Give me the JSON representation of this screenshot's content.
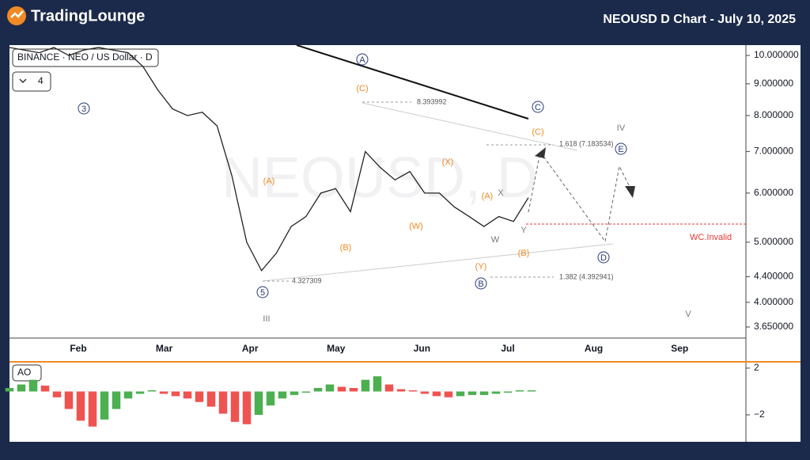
{
  "header": {
    "logo": "TradingLounge",
    "title": "NEOUSD D Chart - July 10, 2025"
  },
  "symbol": "BINANCE · NEO / US Dollar · D",
  "interval_button": "4",
  "watermark": "NEOUSD, D",
  "price_axis": {
    "log": true,
    "ylim": [
      3.503,
      10.39
    ],
    "ticks": [
      {
        "value": 10,
        "label": "10.000000"
      },
      {
        "value": 9,
        "label": "9.000000"
      },
      {
        "value": 8,
        "label": "8.000000"
      },
      {
        "value": 7,
        "label": "7.000000"
      },
      {
        "value": 6,
        "label": "6.000000"
      },
      {
        "value": 5,
        "label": "5.000000"
      },
      {
        "value": 4.4,
        "label": "4.400000"
      },
      {
        "value": 4,
        "label": "4.000000"
      },
      {
        "value": 3.65,
        "label": "3.650000"
      }
    ]
  },
  "time_axis": [
    "Feb",
    "Mar",
    "Apr",
    "May",
    "Jun",
    "Jul",
    "Aug",
    "Sep"
  ],
  "closes": [
    10.3,
    10.2,
    10.1,
    10.3,
    10.0,
    10.2,
    10.3,
    10.2,
    10.1,
    9.6,
    8.8,
    8.2,
    8.0,
    8.1,
    7.7,
    6.4,
    5.0,
    4.5,
    4.8,
    5.3,
    5.5,
    6.0,
    6.1,
    5.6,
    7.0,
    6.6,
    6.3,
    6.5,
    6.0,
    6.0,
    5.7,
    5.5,
    5.3,
    5.5,
    5.4,
    5.9
  ],
  "wave_labels": [
    "3",
    "A",
    "C",
    "(C)",
    "(C)",
    "IV",
    "E",
    "(X)",
    "(A)",
    "(A)",
    "X",
    "(W)",
    "W",
    "Y",
    "(B)",
    "(B)",
    "D",
    "(Y)",
    "B",
    "5",
    "III",
    "V"
  ],
  "levels": [
    "8.393992",
    "1.618 (7.183534)",
    "4.327309",
    "1.382 (4.392941)"
  ],
  "invalid_label": "WC.Invalid",
  "ao": {
    "label": "AO",
    "ylim": [
      -4.17,
      2.47
    ],
    "ticks": [
      2,
      {
        "value": -2,
        "label": "−2"
      }
    ],
    "values": [
      0.3,
      0.6,
      1.0,
      0.5,
      -0.5,
      -1.5,
      -2.5,
      -3.0,
      -2.4,
      -1.5,
      -0.6,
      -0.2,
      0.1,
      -0.2,
      -0.4,
      -0.6,
      -0.9,
      -1.3,
      -1.9,
      -2.6,
      -2.8,
      -2.0,
      -1.2,
      -0.6,
      -0.3,
      -0.1,
      0.3,
      0.6,
      0.4,
      0.3,
      1.0,
      1.3,
      0.6,
      0.2,
      0.1,
      -0.2,
      -0.4,
      -0.5,
      -0.4,
      -0.3,
      -0.3,
      -0.2,
      -0.1,
      0.1,
      0.1
    ]
  }
}
